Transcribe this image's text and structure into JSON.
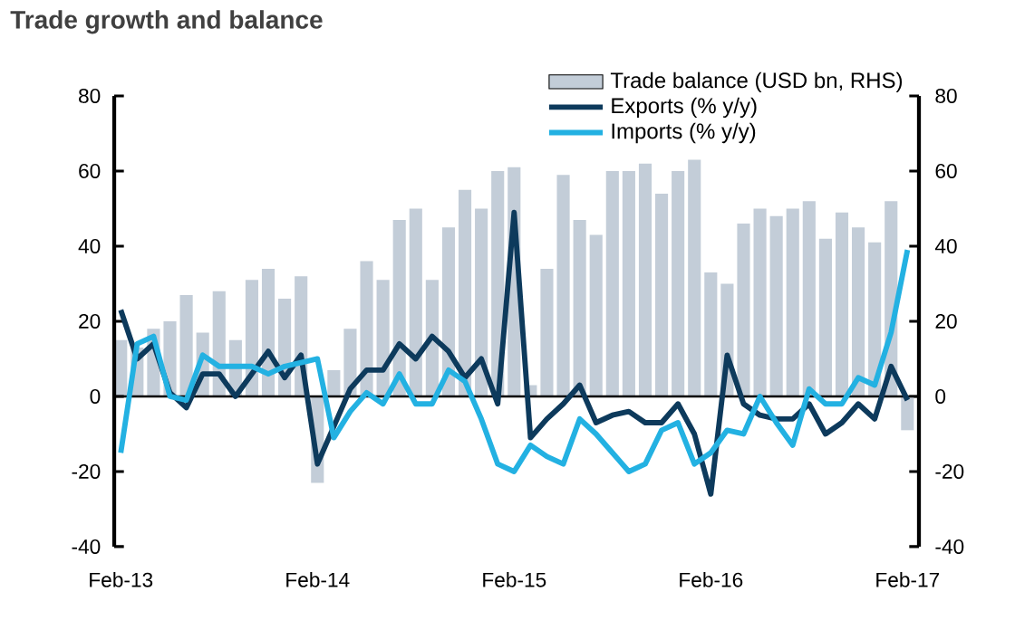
{
  "chart_data": {
    "type": "line",
    "title": "Trade growth and balance",
    "categories": [
      "Feb-13",
      null,
      null,
      null,
      null,
      null,
      null,
      null,
      null,
      null,
      null,
      null,
      "Feb-14",
      null,
      null,
      null,
      null,
      null,
      null,
      null,
      null,
      null,
      null,
      null,
      "Feb-15",
      null,
      null,
      null,
      null,
      null,
      null,
      null,
      null,
      null,
      null,
      null,
      "Feb-16",
      null,
      null,
      null,
      null,
      null,
      null,
      null,
      null,
      null,
      null,
      null,
      "Feb-17"
    ],
    "series": [
      {
        "name": "Trade balance (USD bn, RHS)",
        "type": "bar",
        "axis": "y2",
        "color": "#c3cdd8",
        "values": [
          15,
          13,
          18,
          20,
          27,
          17,
          28,
          15,
          31,
          34,
          26,
          32,
          -23,
          7,
          18,
          36,
          31,
          47,
          50,
          31,
          45,
          55,
          50,
          60,
          61,
          3,
          34,
          59,
          47,
          43,
          60,
          60,
          62,
          54,
          60,
          63,
          33,
          30,
          46,
          50,
          48,
          50,
          52,
          42,
          49,
          45,
          41,
          52,
          -9
        ]
      },
      {
        "name": "Exports (% y/y)",
        "color": "#0d3a5c",
        "values": [
          23,
          10,
          14,
          1,
          -3,
          6,
          6,
          0,
          6,
          12,
          5,
          11,
          -18,
          -8,
          2,
          7,
          7,
          14,
          10,
          16,
          12,
          5,
          10,
          -2,
          49,
          -11,
          -6,
          -2,
          3,
          -7,
          -5,
          -4,
          -7,
          -7,
          -2,
          -10,
          -26,
          11,
          -2,
          -5,
          -6,
          -6,
          -2,
          -10,
          -7,
          -2,
          -6,
          8,
          -1
        ]
      },
      {
        "name": "Imports (% y/y)",
        "color": "#23b1e2",
        "values": [
          -15,
          14,
          16,
          0,
          -1,
          11,
          8,
          8,
          8,
          6,
          8,
          9,
          10,
          -11,
          -4,
          1,
          -2,
          6,
          -2,
          -2,
          7,
          4,
          -6,
          -18,
          -20,
          -13,
          -16,
          -18,
          -6,
          -10,
          -15,
          -20,
          -18,
          -9,
          -7,
          -18,
          -15,
          -9,
          -10,
          0,
          -7,
          -13,
          2,
          -2,
          -2,
          5,
          3,
          17,
          39
        ]
      }
    ],
    "ylim": [
      -40,
      80
    ],
    "yticks": [
      -40,
      -20,
      0,
      20,
      40,
      60,
      80
    ],
    "y2lim": [
      -40,
      80
    ],
    "y2ticks": [
      -40,
      -20,
      0,
      20,
      40,
      60,
      80
    ],
    "ref_lines": [
      {
        "axis": "y",
        "value": 0,
        "color": "#000000"
      }
    ],
    "legend": "top right"
  }
}
